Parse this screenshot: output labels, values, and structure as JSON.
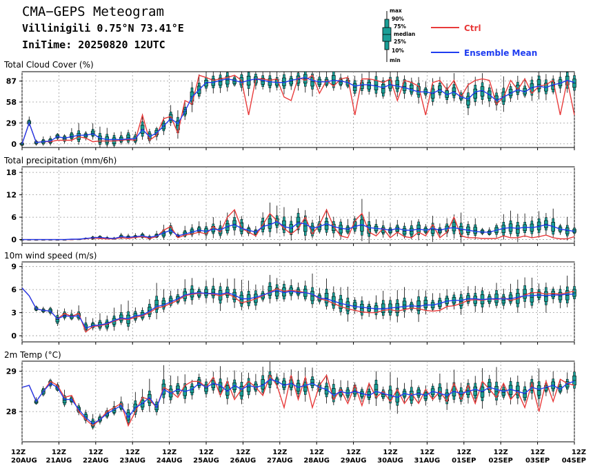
{
  "header": {
    "title": "CMA−GEPS Meteogram",
    "location": "Villinigili 0.75°N 73.41°E",
    "init_time": "IniTime: 20250820 12UTC"
  },
  "legend": {
    "box_labels": [
      "max",
      "90%",
      "75%",
      "median",
      "25%",
      "10%",
      "min"
    ],
    "ctrl_label": "Ctrl",
    "mean_label": "Ensemble Mean"
  },
  "colors": {
    "box_fill": "#1a9e96",
    "box_edge": "#000000",
    "ctrl": "#e83a3a",
    "mean": "#1e3cf0"
  },
  "chart_data": [
    {
      "type": "box",
      "title": "Total Cloud Cover (%)",
      "yticks": [
        0,
        29,
        58,
        87
      ],
      "ylim": [
        -5,
        100
      ],
      "x_labels": [
        [
          "12Z",
          "20AUG"
        ],
        [
          "12Z",
          "21AUG"
        ],
        [
          "12Z",
          "22AUG"
        ],
        [
          "12Z",
          "23AUG"
        ],
        [
          "12Z",
          "24AUG"
        ],
        [
          "12Z",
          "25AUG"
        ],
        [
          "12Z",
          "26AUG"
        ],
        [
          "12Z",
          "27AUG"
        ],
        [
          "12Z",
          "28AUG"
        ],
        [
          "12Z",
          "29AUG"
        ],
        [
          "12Z",
          "30AUG"
        ],
        [
          "12Z",
          "31AUG"
        ],
        [
          "12Z",
          "01SEP"
        ],
        [
          "12Z",
          "02SEP"
        ],
        [
          "12Z",
          "03SEP"
        ],
        [
          "12Z",
          "04SEP"
        ]
      ],
      "seed": 11,
      "mean": [
        0,
        29,
        2,
        3,
        4,
        10,
        8,
        10,
        12,
        12,
        14,
        8,
        6,
        6,
        6,
        7,
        7,
        20,
        10,
        15,
        25,
        35,
        28,
        45,
        65,
        75,
        85,
        85,
        88,
        90,
        88,
        85,
        88,
        90,
        88,
        86,
        85,
        85,
        88,
        90,
        92,
        88,
        86,
        86,
        88,
        87,
        85,
        80,
        82,
        82,
        80,
        78,
        82,
        80,
        78,
        75,
        72,
        72,
        70,
        75,
        68,
        72,
        65,
        62,
        72,
        74,
        68,
        60,
        65,
        70,
        75,
        72,
        78,
        80,
        78,
        82,
        84,
        88,
        85
      ],
      "ctrl": [
        0,
        29,
        2,
        3,
        3,
        5,
        5,
        5,
        10,
        8,
        3,
        4,
        4,
        4,
        5,
        6,
        5,
        40,
        5,
        12,
        35,
        38,
        15,
        60,
        55,
        95,
        92,
        88,
        90,
        92,
        95,
        88,
        40,
        90,
        90,
        88,
        90,
        65,
        60,
        92,
        88,
        95,
        70,
        88,
        80,
        90,
        92,
        40,
        90,
        90,
        88,
        85,
        90,
        60,
        88,
        85,
        80,
        40,
        85,
        88,
        75,
        88,
        65,
        82,
        88,
        90,
        88,
        55,
        65,
        88,
        75,
        90,
        70,
        80,
        82,
        88,
        40,
        88,
        40
      ]
    },
    {
      "type": "box",
      "title": "Total precipitation (mm/6h)",
      "yticks": [
        0,
        6,
        12,
        18
      ],
      "ylim": [
        -1,
        19.5
      ],
      "seed": 23,
      "mean": [
        0,
        0,
        0,
        0,
        0,
        0,
        0,
        0.1,
        0.1,
        0.3,
        0.5,
        0.6,
        0.4,
        0.3,
        0.8,
        0.6,
        0.8,
        1.0,
        0.6,
        1.0,
        1.8,
        2.5,
        1.0,
        1.5,
        2.0,
        2.5,
        2.2,
        2.8,
        2.6,
        3.5,
        4.0,
        3.0,
        2.5,
        2.0,
        3.5,
        4.0,
        4.8,
        3.5,
        3.0,
        4.5,
        4.2,
        3.0,
        3.5,
        4.2,
        3.5,
        3.0,
        2.8,
        3.5,
        4.0,
        3.2,
        3.0,
        2.8,
        2.5,
        3.0,
        2.5,
        2.5,
        2.8,
        2.5,
        3.0,
        2.5,
        3.0,
        3.2,
        2.8,
        2.5,
        2.2,
        2.0,
        2.0,
        2.5,
        3.0,
        3.2,
        3.0,
        3.3,
        3.2,
        3.5,
        4.0,
        3.5,
        2.8,
        2.5,
        2.2
      ],
      "ctrl": [
        0,
        0,
        0,
        0,
        0,
        0,
        0,
        0,
        0.1,
        0.2,
        0.4,
        0.3,
        0.2,
        0.2,
        0.5,
        0.3,
        0.6,
        0.8,
        0.3,
        0.8,
        2.5,
        3.5,
        0.5,
        1.2,
        1.5,
        2.0,
        1.5,
        3.5,
        2.0,
        6.0,
        8.0,
        3.0,
        2.0,
        1.0,
        4.0,
        7.0,
        5.0,
        3.0,
        1.5,
        3.0,
        6.0,
        1.5,
        4.0,
        8.0,
        3.5,
        1.0,
        0.5,
        5.0,
        7.0,
        2.0,
        1.0,
        3.0,
        0.5,
        2.0,
        0.8,
        0.5,
        2.0,
        1.0,
        4.0,
        0.5,
        2.0,
        6.0,
        1.0,
        0.5,
        0.5,
        0.3,
        0.3,
        0.3,
        1.0,
        0.5,
        0.5,
        1.0,
        0.5,
        0.8,
        1.2,
        0.5,
        0.2,
        0.2,
        0.8
      ]
    },
    {
      "type": "box",
      "title": "10m wind speed (m/s)",
      "yticks": [
        0,
        3,
        6,
        9
      ],
      "ylim": [
        -0.8,
        9.6
      ],
      "seed": 37,
      "mean": [
        6.2,
        5.2,
        3.5,
        3.3,
        3.2,
        2.2,
        2.6,
        2.5,
        2.6,
        1.0,
        1.3,
        1.4,
        1.6,
        2.0,
        2.3,
        2.2,
        2.6,
        2.7,
        3.2,
        3.8,
        4.0,
        4.4,
        4.8,
        5.3,
        5.5,
        5.6,
        5.5,
        5.5,
        5.4,
        5.6,
        5.3,
        4.8,
        4.8,
        5.0,
        5.3,
        5.6,
        5.9,
        5.6,
        5.8,
        5.6,
        5.6,
        5.4,
        4.9,
        4.8,
        4.5,
        4.2,
        4.0,
        3.8,
        3.7,
        3.6,
        3.5,
        3.5,
        3.6,
        3.7,
        3.8,
        3.9,
        3.8,
        4.0,
        4.0,
        4.2,
        4.5,
        4.6,
        4.6,
        4.8,
        4.8,
        4.7,
        4.8,
        4.8,
        4.8,
        4.8,
        5.0,
        5.2,
        5.2,
        5.3,
        5.2,
        5.3,
        5.3,
        5.4,
        5.4
      ],
      "ctrl": [
        6.2,
        5.2,
        3.5,
        3.3,
        3.2,
        2.2,
        2.9,
        2.5,
        2.9,
        0.5,
        1.2,
        1.3,
        1.5,
        1.9,
        2.2,
        2.1,
        2.4,
        2.6,
        3.0,
        3.6,
        3.8,
        4.2,
        4.6,
        5.2,
        5.4,
        5.5,
        5.5,
        5.4,
        5.2,
        5.5,
        5.0,
        4.3,
        4.5,
        4.8,
        5.2,
        5.7,
        6.1,
        5.8,
        5.9,
        5.8,
        5.6,
        5.4,
        4.8,
        4.6,
        4.2,
        3.8,
        3.5,
        3.3,
        3.1,
        3.0,
        3.0,
        3.3,
        3.4,
        3.2,
        3.4,
        3.6,
        3.5,
        3.3,
        3.2,
        3.3,
        3.8,
        3.9,
        4.2,
        4.6,
        4.7,
        4.6,
        4.8,
        4.7,
        4.9,
        4.6,
        4.8,
        5.3,
        5.6,
        5.6,
        5.4,
        5.5,
        5.4,
        5.6,
        5.8
      ]
    },
    {
      "type": "box",
      "title": "2m Temp (°C)",
      "yticks": [
        28,
        29
      ],
      "ylim": [
        27.25,
        29.25
      ],
      "seed": 53,
      "mean": [
        28.6,
        28.65,
        28.25,
        28.5,
        28.7,
        28.6,
        28.3,
        28.3,
        28.05,
        27.85,
        27.7,
        27.8,
        27.95,
        28.05,
        28.15,
        27.85,
        28.1,
        28.2,
        28.35,
        28.1,
        28.55,
        28.45,
        28.55,
        28.5,
        28.55,
        28.7,
        28.6,
        28.7,
        28.65,
        28.5,
        28.65,
        28.55,
        28.65,
        28.6,
        28.65,
        28.8,
        28.75,
        28.65,
        28.7,
        28.6,
        28.65,
        28.7,
        28.6,
        28.55,
        28.4,
        28.5,
        28.45,
        28.5,
        28.45,
        28.4,
        28.5,
        28.45,
        28.4,
        28.35,
        28.45,
        28.4,
        28.45,
        28.4,
        28.5,
        28.45,
        28.4,
        28.5,
        28.45,
        28.5,
        28.55,
        28.5,
        28.6,
        28.55,
        28.5,
        28.55,
        28.5,
        28.45,
        28.6,
        28.55,
        28.6,
        28.65,
        28.55,
        28.7,
        28.75
      ],
      "ctrl": [
        28.6,
        28.65,
        28.25,
        28.5,
        28.75,
        28.65,
        28.35,
        28.4,
        28.0,
        27.8,
        27.65,
        27.8,
        28.0,
        28.1,
        28.2,
        27.65,
        28.0,
        28.35,
        28.3,
        28.1,
        28.6,
        28.5,
        28.35,
        28.65,
        28.75,
        28.75,
        28.6,
        28.85,
        28.4,
        28.75,
        28.3,
        28.55,
        28.75,
        28.6,
        28.4,
        28.9,
        28.65,
        28.1,
        28.9,
        28.3,
        28.85,
        28.1,
        28.65,
        28.9,
        28.3,
        28.55,
        28.2,
        28.65,
        28.15,
        28.7,
        28.35,
        28.5,
        28.25,
        28.55,
        28.2,
        28.45,
        28.2,
        28.55,
        28.3,
        28.5,
        28.25,
        28.7,
        28.3,
        28.65,
        28.2,
        28.75,
        28.55,
        28.35,
        28.7,
        28.3,
        28.5,
        28.1,
        28.7,
        28.0,
        28.75,
        28.25,
        28.8,
        28.7,
        28.65
      ]
    }
  ]
}
